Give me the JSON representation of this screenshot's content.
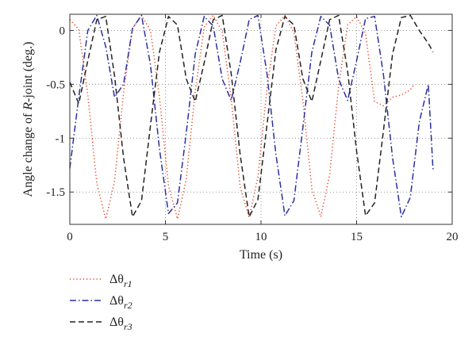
{
  "chart_data": {
    "type": "line",
    "xlabel": "Time (s)",
    "ylabel_parts": {
      "before": "Angle change of ",
      "italic": "R",
      "after": "-joint (deg.)"
    },
    "xlim": [
      0,
      20
    ],
    "ylim": [
      -1.8,
      0.15
    ],
    "xticks": [
      0,
      5,
      10,
      15,
      20
    ],
    "yticks": [
      0,
      -0.5,
      -1,
      -1.5
    ],
    "xtick_labels": [
      "0",
      "5",
      "10",
      "15",
      "20"
    ],
    "ytick_labels": [
      "0",
      "-0.5",
      "-1",
      "-1.5"
    ],
    "grid": true,
    "legend_position": "below",
    "series": [
      {
        "name_prefix": "Δθ",
        "subscript": "r1",
        "color": "#e8401c",
        "dash": "dotted",
        "x": [
          0,
          0.47,
          0.94,
          1.41,
          1.88,
          2.34,
          2.81,
          3.28,
          3.75,
          4.22,
          4.69,
          5.16,
          5.63,
          6.09,
          6.56,
          7.03,
          7.5,
          7.97,
          8.44,
          8.91,
          9.38,
          9.84,
          10.31,
          10.78,
          11.25,
          11.72,
          12.19,
          12.66,
          13.13,
          13.59,
          14.06,
          14.53,
          15.0,
          15.47,
          15.94,
          16.41,
          16.88,
          17.34,
          17.81,
          18.0
        ],
        "y": [
          0.1,
          0.01,
          -0.6,
          -1.42,
          -1.75,
          -1.4,
          -0.58,
          0.02,
          0.14,
          0.0,
          -0.62,
          -1.44,
          -1.75,
          -1.38,
          -0.56,
          0.03,
          0.14,
          -0.01,
          -0.63,
          -1.45,
          -1.74,
          -1.36,
          -0.54,
          0.04,
          0.14,
          -0.02,
          -0.65,
          -1.47,
          -1.73,
          -1.34,
          -0.52,
          0.05,
          0.13,
          -0.03,
          -0.66,
          -0.7,
          -0.62,
          -0.6,
          -0.55,
          -0.5
        ]
      },
      {
        "name_prefix": "Δθ",
        "subscript": "r2",
        "color": "#2a2f9e",
        "dash": "dashdot",
        "x": [
          0,
          0.47,
          0.94,
          1.41,
          1.88,
          2.34,
          2.81,
          3.28,
          3.75,
          4.22,
          4.69,
          5.16,
          5.63,
          6.09,
          6.56,
          7.03,
          7.5,
          7.97,
          8.44,
          8.91,
          9.38,
          9.84,
          10.31,
          10.78,
          11.25,
          11.72,
          12.19,
          12.66,
          13.13,
          13.59,
          14.06,
          14.53,
          15.0,
          15.47,
          15.94,
          16.41,
          16.88,
          17.34,
          17.81,
          18.28,
          18.75,
          19.0
        ],
        "y": [
          -1.28,
          -0.62,
          0.0,
          0.14,
          -0.15,
          -0.62,
          -0.5,
          0.02,
          0.14,
          -0.32,
          -1.1,
          -1.7,
          -1.6,
          -0.95,
          -0.22,
          0.13,
          0.04,
          -0.45,
          -0.65,
          -0.3,
          0.1,
          0.14,
          -0.4,
          -1.15,
          -1.72,
          -1.58,
          -0.9,
          -0.2,
          0.13,
          0.05,
          -0.45,
          -0.65,
          -0.28,
          0.11,
          0.13,
          -0.42,
          -1.18,
          -1.73,
          -1.55,
          -0.85,
          -0.5,
          -1.3
        ]
      },
      {
        "name_prefix": "Δθ",
        "subscript": "r3",
        "color": "#222222",
        "dash": "dashed",
        "x": [
          0,
          0.47,
          0.94,
          1.41,
          1.88,
          2.34,
          2.81,
          3.28,
          3.75,
          4.22,
          4.69,
          5.16,
          5.63,
          6.09,
          6.56,
          7.03,
          7.5,
          7.97,
          8.44,
          8.91,
          9.38,
          9.84,
          10.31,
          10.78,
          11.25,
          11.72,
          12.19,
          12.66,
          13.13,
          13.59,
          14.06,
          14.53,
          15.0,
          15.47,
          15.94,
          16.41,
          16.88,
          17.34,
          17.81,
          18.28,
          18.75,
          19.0
        ],
        "y": [
          -0.48,
          -0.68,
          -0.28,
          0.1,
          0.13,
          -0.42,
          -1.18,
          -1.73,
          -1.58,
          -0.88,
          -0.2,
          0.13,
          0.05,
          -0.45,
          -0.66,
          -0.3,
          0.1,
          0.14,
          -0.4,
          -1.15,
          -1.73,
          -1.57,
          -0.88,
          -0.18,
          0.13,
          0.05,
          -0.45,
          -0.66,
          -0.28,
          0.1,
          0.14,
          -0.38,
          -1.12,
          -1.72,
          -1.6,
          -0.92,
          -0.22,
          0.12,
          0.14,
          0.0,
          -0.12,
          -0.2
        ]
      }
    ]
  }
}
